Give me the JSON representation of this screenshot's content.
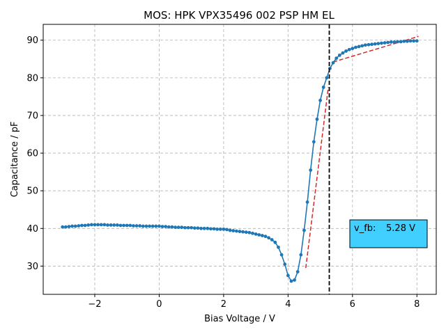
{
  "chart_data": {
    "type": "line",
    "title": "MOS: HPK VPX35496 002 PSP HM EL",
    "xlabel": "Bias Voltage / V",
    "ylabel": "Capacitance / pF",
    "xlim": [
      -3.6,
      8.6
    ],
    "ylim": [
      22.5,
      94.2
    ],
    "xticks": [
      -2,
      0,
      2,
      4,
      6,
      8
    ],
    "yticks": [
      30,
      40,
      50,
      60,
      70,
      80,
      90
    ],
    "xtick_labels": [
      "−2",
      "0",
      "2",
      "4",
      "6",
      "8"
    ],
    "ytick_labels": [
      "30",
      "40",
      "50",
      "60",
      "70",
      "80",
      "90"
    ],
    "grid": true,
    "colors": {
      "series": "#1f77b4",
      "fit": "#d62728",
      "marker_line": "#000000",
      "box_fill": "#40cfff"
    },
    "series": [
      {
        "x": [
          -3.0,
          -2.9,
          -2.8,
          -2.7,
          -2.6,
          -2.5,
          -2.4,
          -2.3,
          -2.2,
          -2.1,
          -2.0,
          -1.9,
          -1.8,
          -1.7,
          -1.6,
          -1.5,
          -1.4,
          -1.3,
          -1.2,
          -1.1,
          -1.0,
          -0.9,
          -0.8,
          -0.7,
          -0.6,
          -0.5,
          -0.4,
          -0.3,
          -0.2,
          -0.1,
          0.0,
          0.1,
          0.2,
          0.3,
          0.4,
          0.5,
          0.6,
          0.7,
          0.8,
          0.9,
          1.0,
          1.1,
          1.2,
          1.3,
          1.4,
          1.5,
          1.6,
          1.7,
          1.8,
          1.9,
          2.0,
          2.1,
          2.2,
          2.3,
          2.4,
          2.5,
          2.6,
          2.7,
          2.8,
          2.9,
          3.0,
          3.1,
          3.2,
          3.3,
          3.4,
          3.5,
          3.6,
          3.7,
          3.8,
          3.9,
          4.0,
          4.1,
          4.2,
          4.3,
          4.4,
          4.5,
          4.6,
          4.7,
          4.8,
          4.9,
          5.0,
          5.1,
          5.2,
          5.3,
          5.4,
          5.5,
          5.6,
          5.7,
          5.8,
          5.9,
          6.0,
          6.1,
          6.2,
          6.3,
          6.4,
          6.5,
          6.6,
          6.7,
          6.8,
          6.9,
          7.0,
          7.1,
          7.2,
          7.3,
          7.4,
          7.5,
          7.6,
          7.7,
          7.8,
          7.9,
          8.0
        ],
        "y": [
          40.4,
          40.4,
          40.5,
          40.6,
          40.6,
          40.7,
          40.8,
          40.8,
          40.9,
          41.0,
          41.0,
          41.0,
          41.0,
          41.0,
          40.9,
          40.9,
          40.9,
          40.9,
          40.8,
          40.8,
          40.8,
          40.8,
          40.7,
          40.7,
          40.7,
          40.6,
          40.6,
          40.6,
          40.6,
          40.6,
          40.6,
          40.5,
          40.5,
          40.4,
          40.4,
          40.3,
          40.3,
          40.3,
          40.2,
          40.2,
          40.2,
          40.1,
          40.1,
          40.0,
          40.0,
          40.0,
          39.9,
          39.9,
          39.8,
          39.8,
          39.8,
          39.7,
          39.5,
          39.4,
          39.3,
          39.2,
          39.1,
          39.0,
          38.9,
          38.7,
          38.5,
          38.3,
          38.1,
          37.9,
          37.5,
          37.0,
          36.3,
          35.0,
          33.0,
          30.5,
          27.5,
          26.0,
          26.3,
          28.5,
          33.0,
          39.5,
          47.0,
          55.5,
          63.0,
          69.0,
          74.0,
          77.5,
          80.0,
          82.5,
          84.0,
          85.2,
          86.0,
          86.6,
          87.1,
          87.5,
          87.8,
          88.1,
          88.3,
          88.5,
          88.7,
          88.8,
          88.9,
          89.0,
          89.1,
          89.2,
          89.3,
          89.4,
          89.5,
          89.5,
          89.6,
          89.6,
          89.7,
          89.7,
          89.8,
          89.8,
          89.8
        ]
      }
    ],
    "fits": [
      {
        "x": [
          4.55,
          5.25
        ],
        "y": [
          29.5,
          77.5
        ]
      },
      {
        "x": [
          5.4,
          8.05
        ],
        "y": [
          84.2,
          91.0
        ]
      }
    ],
    "vline": {
      "x": 5.28
    },
    "annotation": {
      "label": "v_fb:",
      "value": "5.28 V"
    }
  }
}
